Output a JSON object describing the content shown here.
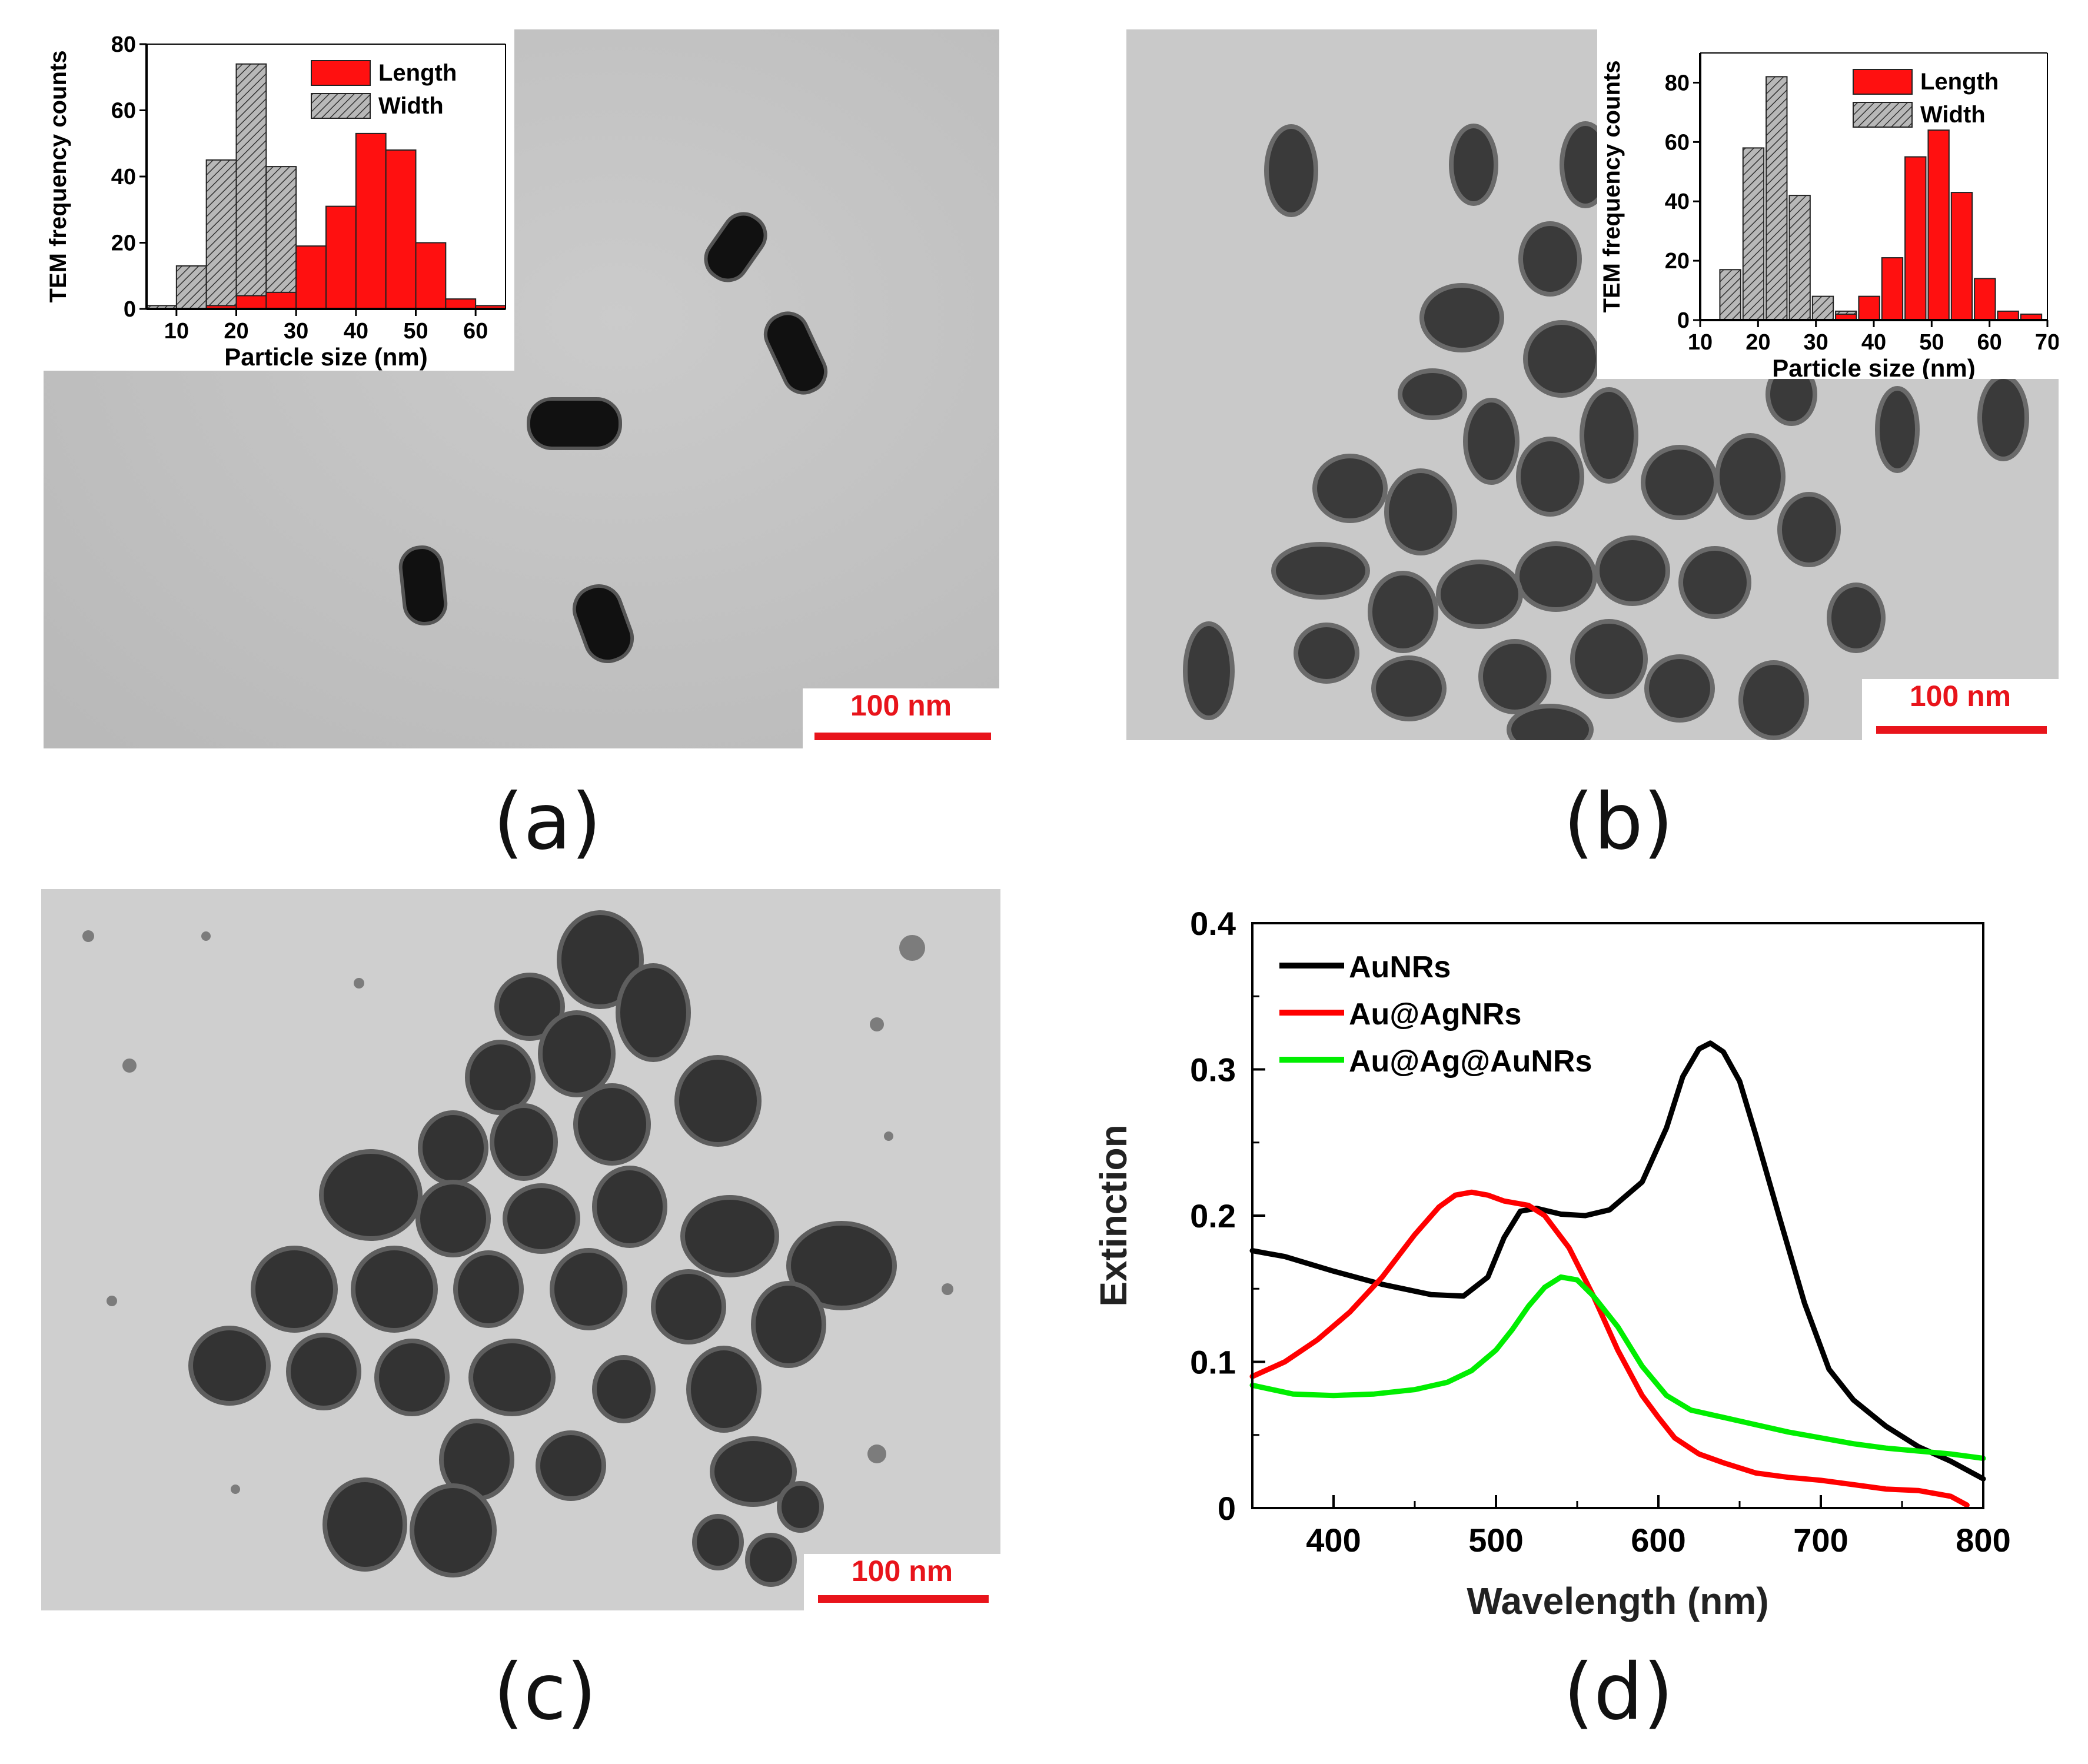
{
  "panels": {
    "a": {
      "label": "(a)",
      "scale_bar": "100 nm"
    },
    "b": {
      "label": "(b)",
      "scale_bar": "100 nm"
    },
    "c": {
      "label": "(c)",
      "scale_bar": "100 nm"
    },
    "d": {
      "label": "(d)"
    }
  },
  "colors": {
    "length": "#ff1010",
    "width": "#b8b8b8",
    "AuNRs": "#000000",
    "Au@AgNRs": "#ff0000",
    "Au@Ag@AuNRs": "#00ee00",
    "tem_bg": "#c4c4c4"
  },
  "chart_data": [
    {
      "id": "inset-a",
      "type": "bar",
      "title": "",
      "xlabel": "Particle size (nm)",
      "ylabel": "TEM frequency counts",
      "xlim": [
        5,
        65
      ],
      "ylim": [
        0,
        80
      ],
      "xticks": [
        10,
        20,
        30,
        40,
        50,
        60
      ],
      "yticks": [
        0,
        20,
        40,
        60,
        80
      ],
      "bin_width": 5,
      "legend": "top-right",
      "series": [
        {
          "name": "Length",
          "pattern": "solid red",
          "bins": [
            7.5,
            12.5,
            17.5,
            22.5,
            27.5,
            32.5,
            37.5,
            42.5,
            47.5,
            52.5,
            57.5,
            62.5
          ],
          "values": [
            0,
            0,
            1,
            4,
            5,
            19,
            31,
            53,
            48,
            20,
            3,
            1
          ]
        },
        {
          "name": "Width",
          "pattern": "gray hatched",
          "bins": [
            7.5,
            12.5,
            17.5,
            22.5,
            27.5,
            32.5
          ],
          "values": [
            1,
            13,
            45,
            74,
            43,
            5
          ]
        }
      ]
    },
    {
      "id": "inset-b",
      "type": "bar",
      "title": "",
      "xlabel": "Particle size (nm)",
      "ylabel": "TEM frequency counts",
      "xlim": [
        10,
        70
      ],
      "ylim": [
        0,
        90
      ],
      "xticks": [
        10,
        20,
        30,
        40,
        50,
        60,
        70
      ],
      "yticks": [
        0,
        20,
        40,
        60,
        80
      ],
      "bin_width": 3.6,
      "legend": "top-right",
      "series": [
        {
          "name": "Length",
          "pattern": "solid red",
          "bins": [
            35.2,
            39.2,
            43.2,
            47.2,
            51.2,
            55.2,
            59.2,
            63.2,
            67.2
          ],
          "values": [
            2,
            8,
            21,
            55,
            64,
            43,
            14,
            3,
            2
          ]
        },
        {
          "name": "Width",
          "pattern": "gray hatched",
          "bins": [
            15.2,
            19.2,
            23.2,
            27.2,
            31.2,
            35.2,
            39.2
          ],
          "values": [
            17,
            58,
            82,
            42,
            8,
            3,
            2
          ]
        }
      ]
    },
    {
      "id": "spectra-d",
      "type": "line",
      "title": "",
      "xlabel": "Wavelength (nm)",
      "ylabel": "Extinction",
      "xlim": [
        350,
        800
      ],
      "ylim": [
        0,
        0.4
      ],
      "xticks": [
        400,
        500,
        600,
        700,
        800
      ],
      "yticks": [
        0,
        0.1,
        0.2,
        0.3,
        0.4
      ],
      "ytick_labels": [
        "0",
        "0.1",
        "0.2",
        "0.3",
        "0.4"
      ],
      "legend": "top-left",
      "series": [
        {
          "name": "AuNRs",
          "x": [
            350,
            370,
            400,
            430,
            460,
            480,
            495,
            505,
            515,
            525,
            540,
            555,
            570,
            590,
            605,
            615,
            625,
            632,
            640,
            650,
            660,
            675,
            690,
            705,
            720,
            740,
            760,
            780,
            800
          ],
          "y": [
            0.176,
            0.172,
            0.162,
            0.153,
            0.146,
            0.145,
            0.158,
            0.185,
            0.203,
            0.205,
            0.201,
            0.2,
            0.204,
            0.223,
            0.26,
            0.295,
            0.314,
            0.318,
            0.312,
            0.292,
            0.255,
            0.197,
            0.14,
            0.095,
            0.074,
            0.056,
            0.042,
            0.032,
            0.02
          ]
        },
        {
          "name": "Au@AgNRs",
          "x": [
            350,
            370,
            390,
            410,
            430,
            450,
            465,
            475,
            485,
            495,
            505,
            520,
            530,
            545,
            560,
            575,
            590,
            600,
            610,
            625,
            640,
            660,
            680,
            700,
            720,
            740,
            760,
            780,
            790
          ],
          "y": [
            0.09,
            0.1,
            0.115,
            0.134,
            0.158,
            0.187,
            0.206,
            0.214,
            0.216,
            0.214,
            0.21,
            0.207,
            0.2,
            0.178,
            0.145,
            0.108,
            0.077,
            0.062,
            0.048,
            0.037,
            0.031,
            0.024,
            0.021,
            0.019,
            0.016,
            0.013,
            0.012,
            0.008,
            0.002
          ]
        },
        {
          "name": "Au@Ag@AuNRs",
          "x": [
            350,
            375,
            400,
            425,
            450,
            470,
            485,
            500,
            510,
            520,
            530,
            540,
            550,
            560,
            575,
            590,
            605,
            620,
            640,
            660,
            680,
            700,
            720,
            740,
            760,
            780,
            800
          ],
          "y": [
            0.084,
            0.078,
            0.077,
            0.078,
            0.081,
            0.086,
            0.094,
            0.108,
            0.122,
            0.138,
            0.151,
            0.158,
            0.156,
            0.145,
            0.124,
            0.097,
            0.077,
            0.067,
            0.062,
            0.057,
            0.052,
            0.048,
            0.044,
            0.041,
            0.039,
            0.037,
            0.034
          ]
        }
      ]
    }
  ]
}
